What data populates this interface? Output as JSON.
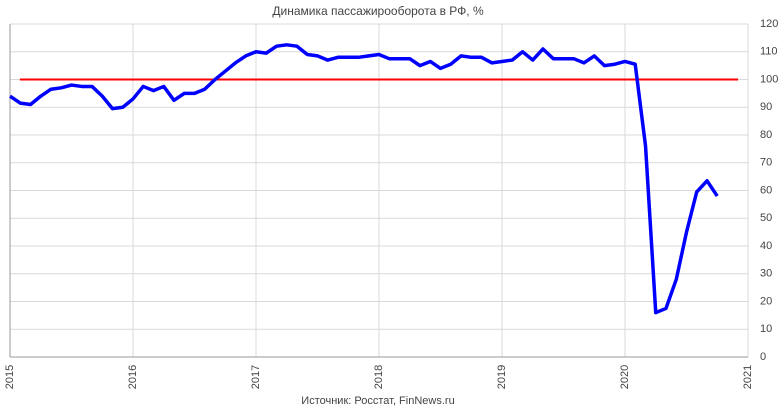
{
  "chart_data": {
    "type": "line",
    "title": "Динамика пассажирооборота в РФ, %",
    "source": "Источник: Росстат, FinNews.ru",
    "xlim": [
      2015,
      2021
    ],
    "xticks": [
      2015,
      2016,
      2017,
      2018,
      2019,
      2020,
      2021
    ],
    "ylim": [
      0,
      120
    ],
    "yticks": [
      0,
      10,
      20,
      30,
      40,
      50,
      60,
      70,
      80,
      90,
      100,
      110,
      120
    ],
    "grid": true,
    "series": [
      {
        "color": "#0000ff",
        "x": [
          2015,
          2015.083,
          2015.167,
          2015.25,
          2015.333,
          2015.417,
          2015.5,
          2015.583,
          2015.667,
          2015.75,
          2015.833,
          2015.917,
          2016,
          2016.083,
          2016.167,
          2016.25,
          2016.333,
          2016.417,
          2016.5,
          2016.583,
          2016.667,
          2016.75,
          2016.833,
          2016.917,
          2017,
          2017.083,
          2017.167,
          2017.25,
          2017.333,
          2017.417,
          2017.5,
          2017.583,
          2017.667,
          2017.75,
          2017.833,
          2017.917,
          2018,
          2018.083,
          2018.167,
          2018.25,
          2018.333,
          2018.417,
          2018.5,
          2018.583,
          2018.667,
          2018.75,
          2018.833,
          2018.917,
          2019,
          2019.083,
          2019.167,
          2019.25,
          2019.333,
          2019.417,
          2019.5,
          2019.583,
          2019.667,
          2019.75,
          2019.833,
          2019.917,
          2020,
          2020.083,
          2020.167,
          2020.25,
          2020.333,
          2020.417,
          2020.5,
          2020.583,
          2020.667,
          2020.75
        ],
        "values": [
          94,
          91.5,
          91,
          94,
          96.5,
          97,
          98,
          97.5,
          97.5,
          94,
          89.5,
          90,
          93,
          97.5,
          96,
          97.5,
          92.5,
          95,
          95,
          96.5,
          100,
          103,
          106,
          108.5,
          110,
          109.5,
          112,
          112.5,
          112,
          109,
          108.5,
          107,
          108,
          108,
          108,
          108.5,
          109,
          107.5,
          107.5,
          107.5,
          105,
          106.5,
          104,
          105.5,
          108.5,
          108,
          108,
          106,
          106.5,
          107,
          110,
          107,
          111,
          107.5,
          107.5,
          107.5,
          106,
          108.5,
          105,
          105.5,
          106.5,
          105.5,
          76,
          16,
          17.5,
          28,
          45,
          59.5,
          63.5,
          58
        ]
      },
      {
        "color": "#ff0000",
        "x": [
          2015.08,
          2020.92
        ],
        "values": [
          100,
          100
        ]
      }
    ]
  }
}
